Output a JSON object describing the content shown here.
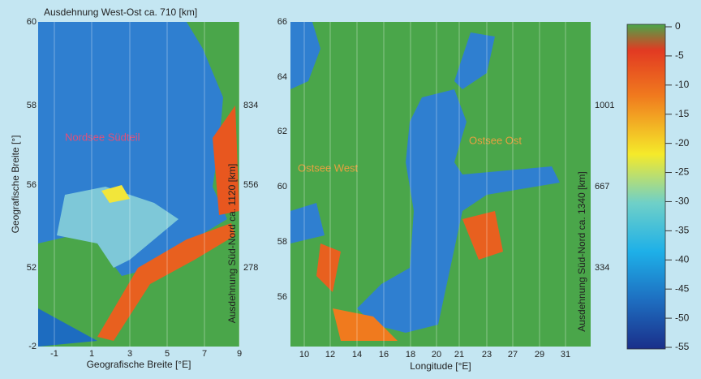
{
  "left_map": {
    "title": "Ausdehnung West-Ost ca. 710 [km]",
    "annotation": "Nordsee Südteil",
    "y_ticks": [
      60,
      58,
      56,
      52,
      -2
    ],
    "x_ticks": [
      -1,
      1,
      3,
      5,
      7,
      9
    ],
    "x_label": "Geografische Breite [°E]",
    "y_label": "Geografische Breite [°]",
    "km_ticks": [
      834,
      556,
      278
    ],
    "km_label": "Ausdehnung Süd-Nord ca. 1120 [km]"
  },
  "right_map": {
    "annotations": [
      "Ostsee West",
      "Ostsee Ost"
    ],
    "y_ticks": [
      66,
      64,
      62,
      60,
      58,
      56
    ],
    "x_ticks": [
      10,
      12,
      14,
      16,
      18,
      20,
      21,
      23,
      27,
      29,
      31
    ],
    "x_label": "Longitude [°E]",
    "km_ticks": [
      1001,
      667,
      334
    ],
    "km_label": "Ausdehnung Süd-Nord ca. 1340 [km]"
  },
  "colorbar": {
    "ticks": [
      0,
      -5,
      -10,
      -15,
      -20,
      -25,
      -30,
      -35,
      -40,
      -45,
      -50,
      -55
    ]
  }
}
